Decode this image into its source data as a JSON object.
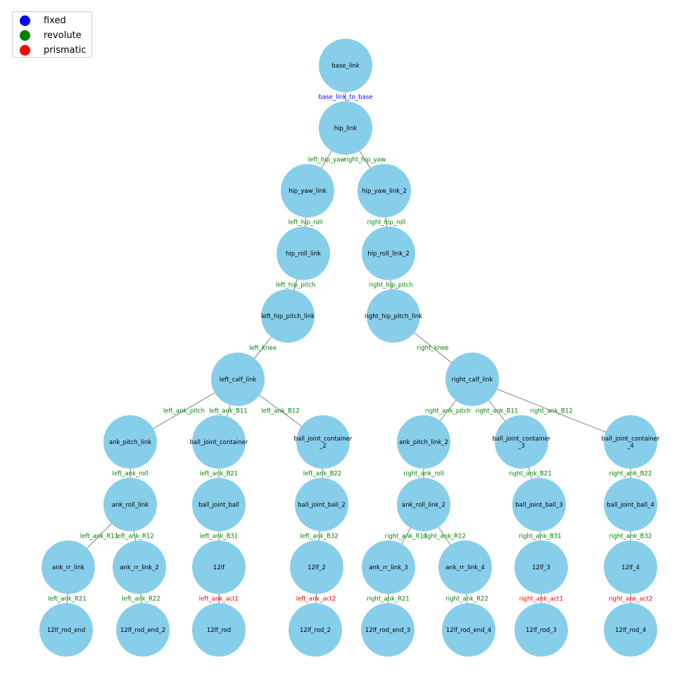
{
  "colors": {
    "node_fill": "#87CEEB",
    "edge": "#808080",
    "fixed": "#0000FF",
    "revolute": "#008000",
    "prismatic": "#FF0000"
  },
  "legend": [
    {
      "label": "fixed",
      "color": "#0000FF"
    },
    {
      "label": "revolute",
      "color": "#008000"
    },
    {
      "label": "prismatic",
      "color": "#FF0000"
    }
  ],
  "nodes": [
    {
      "id": "base_link",
      "lines": [
        "base_link"
      ]
    },
    {
      "id": "hip_link",
      "lines": [
        "hip_link"
      ]
    },
    {
      "id": "hip_yaw_link",
      "lines": [
        "hip_yaw_link"
      ]
    },
    {
      "id": "hip_yaw_link_2",
      "lines": [
        "hip_yaw_link_2"
      ]
    },
    {
      "id": "hip_roll_link",
      "lines": [
        "hip_roll_link"
      ]
    },
    {
      "id": "hip_roll_link_2",
      "lines": [
        "hip_roll_link_2"
      ]
    },
    {
      "id": "left_hip_pitch_link",
      "lines": [
        "left_hip_pitch_link"
      ]
    },
    {
      "id": "right_hip_pitch_link",
      "lines": [
        "right_hip_pitch_link"
      ]
    },
    {
      "id": "left_calf_link",
      "lines": [
        "left_calf_link"
      ]
    },
    {
      "id": "right_calf_link",
      "lines": [
        "right_calf_link"
      ]
    },
    {
      "id": "ank_pitch_link",
      "lines": [
        "ank_pitch_link"
      ]
    },
    {
      "id": "ball_joint_container",
      "lines": [
        "ball_joint_container"
      ]
    },
    {
      "id": "ball_joint_container_2",
      "lines": [
        "ball_joint_container",
        "_2"
      ]
    },
    {
      "id": "ank_pitch_link_2",
      "lines": [
        "ank_pitch_link_2"
      ]
    },
    {
      "id": "ball_joint_container_3",
      "lines": [
        "ball_joint_container",
        "_3"
      ]
    },
    {
      "id": "ball_joint_container_4",
      "lines": [
        "ball_joint_container",
        "_4"
      ]
    },
    {
      "id": "ank_roll_link",
      "lines": [
        "ank_roll_link"
      ]
    },
    {
      "id": "ball_joint_ball",
      "lines": [
        "ball_joint_ball"
      ]
    },
    {
      "id": "ball_joint_ball_2",
      "lines": [
        "ball_joint_ball_2"
      ]
    },
    {
      "id": "ank_roll_link_2",
      "lines": [
        "ank_roll_link_2"
      ]
    },
    {
      "id": "ball_joint_ball_3",
      "lines": [
        "ball_joint_ball_3"
      ]
    },
    {
      "id": "ball_joint_ball_4",
      "lines": [
        "ball_joint_ball_4"
      ]
    },
    {
      "id": "ank_rr_link",
      "lines": [
        "ank_rr_link"
      ]
    },
    {
      "id": "ank_rr_link_2",
      "lines": [
        "ank_rr_link_2"
      ]
    },
    {
      "id": "12lf",
      "lines": [
        "12lf"
      ]
    },
    {
      "id": "12lf_2",
      "lines": [
        "12lf_2"
      ]
    },
    {
      "id": "ank_rr_link_3",
      "lines": [
        "ank_rr_link_3"
      ]
    },
    {
      "id": "ank_rr_link_4",
      "lines": [
        "ank_rr_link_4"
      ]
    },
    {
      "id": "12lf_3",
      "lines": [
        "12lf_3"
      ]
    },
    {
      "id": "12lf_4",
      "lines": [
        "12lf_4"
      ]
    },
    {
      "id": "12lf_rod_end",
      "lines": [
        "12lf_rod_end"
      ]
    },
    {
      "id": "12lf_rod_end_2",
      "lines": [
        "12lf_rod_end_2"
      ]
    },
    {
      "id": "12lf_rod",
      "lines": [
        "12lf_rod"
      ]
    },
    {
      "id": "12lf_rod_2",
      "lines": [
        "12lf_rod_2"
      ]
    },
    {
      "id": "12lf_rod_end_3",
      "lines": [
        "12lf_rod_end_3"
      ]
    },
    {
      "id": "12lf_rod_end_4",
      "lines": [
        "12lf_rod_end_4"
      ]
    },
    {
      "id": "12lf_rod_3",
      "lines": [
        "12lf_rod_3"
      ]
    },
    {
      "id": "12lf_rod_4",
      "lines": [
        "12lf_rod_4"
      ]
    }
  ],
  "edges": [
    {
      "from": "base_link",
      "to": "hip_link",
      "label": "base_link_to_base",
      "type": "fixed"
    },
    {
      "from": "hip_link",
      "to": "hip_yaw_link",
      "label": "left_hip_yaw",
      "type": "revolute"
    },
    {
      "from": "hip_link",
      "to": "hip_yaw_link_2",
      "label": "right_hip_yaw",
      "type": "revolute"
    },
    {
      "from": "hip_yaw_link",
      "to": "hip_roll_link",
      "label": "left_hip_roll",
      "type": "revolute"
    },
    {
      "from": "hip_yaw_link_2",
      "to": "hip_roll_link_2",
      "label": "right_hip_roll",
      "type": "revolute"
    },
    {
      "from": "hip_roll_link",
      "to": "left_hip_pitch_link",
      "label": "left_hip_pitch",
      "type": "revolute"
    },
    {
      "from": "hip_roll_link_2",
      "to": "right_hip_pitch_link",
      "label": "right_hip_pitch",
      "type": "revolute"
    },
    {
      "from": "left_hip_pitch_link",
      "to": "left_calf_link",
      "label": "left_knee",
      "type": "revolute"
    },
    {
      "from": "right_hip_pitch_link",
      "to": "right_calf_link",
      "label": "right_knee",
      "type": "revolute"
    },
    {
      "from": "left_calf_link",
      "to": "ank_pitch_link",
      "label": "left_ank_pitch",
      "type": "revolute"
    },
    {
      "from": "left_calf_link",
      "to": "ball_joint_container",
      "label": "left_ank_B11",
      "type": "revolute"
    },
    {
      "from": "left_calf_link",
      "to": "ball_joint_container_2",
      "label": "left_ank_B12",
      "type": "revolute"
    },
    {
      "from": "right_calf_link",
      "to": "ank_pitch_link_2",
      "label": "right_ank_pitch",
      "type": "revolute"
    },
    {
      "from": "right_calf_link",
      "to": "ball_joint_container_3",
      "label": "right_ank_B11",
      "type": "revolute"
    },
    {
      "from": "right_calf_link",
      "to": "ball_joint_container_4",
      "label": "right_ank_B12",
      "type": "revolute"
    },
    {
      "from": "ank_pitch_link",
      "to": "ank_roll_link",
      "label": "left_ank_roll",
      "type": "revolute"
    },
    {
      "from": "ball_joint_container",
      "to": "ball_joint_ball",
      "label": "left_ank_B21",
      "type": "revolute"
    },
    {
      "from": "ball_joint_container_2",
      "to": "ball_joint_ball_2",
      "label": "left_ank_B22",
      "type": "revolute"
    },
    {
      "from": "ank_pitch_link_2",
      "to": "ank_roll_link_2",
      "label": "right_ank_roll",
      "type": "revolute"
    },
    {
      "from": "ball_joint_container_3",
      "to": "ball_joint_ball_3",
      "label": "right_ank_B21",
      "type": "revolute"
    },
    {
      "from": "ball_joint_container_4",
      "to": "ball_joint_ball_4",
      "label": "right_ank_B22",
      "type": "revolute"
    },
    {
      "from": "ank_roll_link",
      "to": "ank_rr_link",
      "label": "left_ank_R11",
      "type": "revolute"
    },
    {
      "from": "ank_roll_link",
      "to": "ank_rr_link_2",
      "label": "left_ank_R12",
      "type": "revolute"
    },
    {
      "from": "ball_joint_ball",
      "to": "12lf",
      "label": "left_ank_B31",
      "type": "revolute"
    },
    {
      "from": "ball_joint_ball_2",
      "to": "12lf_2",
      "label": "left_ank_B32",
      "type": "revolute"
    },
    {
      "from": "ank_roll_link_2",
      "to": "ank_rr_link_3",
      "label": "right_ank_R11",
      "type": "revolute"
    },
    {
      "from": "ank_roll_link_2",
      "to": "ank_rr_link_4",
      "label": "right_ank_R12",
      "type": "revolute"
    },
    {
      "from": "ball_joint_ball_3",
      "to": "12lf_3",
      "label": "right_ank_B31",
      "type": "revolute"
    },
    {
      "from": "ball_joint_ball_4",
      "to": "12lf_4",
      "label": "right_ank_B32",
      "type": "revolute"
    },
    {
      "from": "ank_rr_link",
      "to": "12lf_rod_end",
      "label": "left_ank_R21",
      "type": "revolute"
    },
    {
      "from": "ank_rr_link_2",
      "to": "12lf_rod_end_2",
      "label": "left_ank_R22",
      "type": "revolute"
    },
    {
      "from": "12lf",
      "to": "12lf_rod",
      "label": "left_ank_act1",
      "type": "prismatic"
    },
    {
      "from": "12lf_2",
      "to": "12lf_rod_2",
      "label": "left_ank_act2",
      "type": "prismatic"
    },
    {
      "from": "ank_rr_link_3",
      "to": "12lf_rod_end_3",
      "label": "right_ank_R21",
      "type": "revolute"
    },
    {
      "from": "ank_rr_link_4",
      "to": "12lf_rod_end_4",
      "label": "right_ank_R22",
      "type": "revolute"
    },
    {
      "from": "12lf_3",
      "to": "12lf_rod_3",
      "label": "right_ank_act1",
      "type": "prismatic"
    },
    {
      "from": "12lf_4",
      "to": "12lf_rod_4",
      "label": "right_ank_act2",
      "type": "prismatic"
    }
  ]
}
